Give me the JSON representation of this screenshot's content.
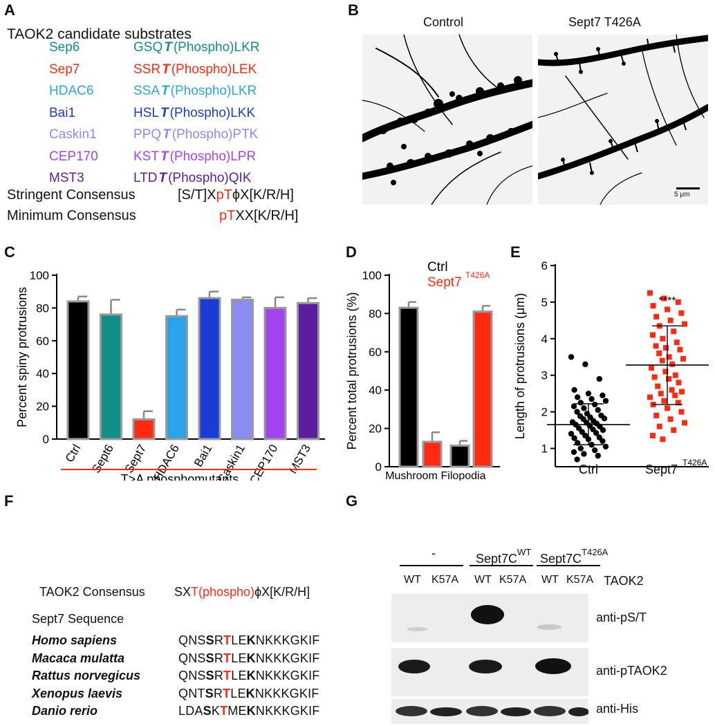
{
  "panels": {
    "A": {
      "letter": "A",
      "title": "TAOK2 candidate substrates",
      "rows": [
        {
          "name": "Sep6",
          "prefix": "GSQ",
          "site": "T",
          "suffix": "(Phospho)LKR",
          "color": "#0f8f86"
        },
        {
          "name": "Sep7",
          "prefix": "SSR",
          "site": "T",
          "suffix": "(Phospho)LEK",
          "color": "#ff2a10"
        },
        {
          "name": "HDAC6",
          "prefix": "SSA",
          "site": "T",
          "suffix": "(Phospho)LKR",
          "color": "#2aa3ea"
        },
        {
          "name": "Bai1",
          "prefix": "HSL",
          "site": "T",
          "suffix": "(Phospho)LKK",
          "color": "#1a3bd4"
        },
        {
          "name": "Caskin1",
          "prefix": "PPQ",
          "site": "T",
          "suffix": "(Phospho)PTK",
          "color": "#8a8cf0"
        },
        {
          "name": "CEP170",
          "prefix": "KST",
          "site": "T",
          "suffix": "(Phospho)LPR",
          "color": "#a245ee"
        },
        {
          "name": "MST3",
          "prefix": "LTD",
          "site": "T",
          "suffix": "(Phospho)QIK",
          "color": "#5a1e9e"
        }
      ],
      "stringent_label": "Stringent Consensus",
      "stringent_pre": "[S/T]X",
      "stringent_red": "pT",
      "stringent_post": "ϕX[K/R/H]",
      "minimum_label": "Minimum Consensus",
      "minimum_red": "pT",
      "minimum_post": "XX[K/R/H]"
    },
    "B": {
      "letter": "B",
      "left_title": "Control",
      "right_title": "Sept7 T426A",
      "scale_label": "5 μm"
    },
    "C": {
      "letter": "C"
    },
    "D": {
      "letter": "D"
    },
    "E": {
      "letter": "E"
    },
    "F": {
      "letter": "F",
      "consensus_label": "TAOK2 Consensus",
      "consensus_pre": "SX",
      "consensus_red": "T(phospho)",
      "consensus_post": "ϕX[K/R/H]",
      "seq_title": "Sept7 Sequence",
      "species": [
        {
          "name": "Homo sapiens",
          "a": "QNS",
          "b": "S",
          "c": "R",
          "d": "T",
          "e": "LE",
          "f": "K",
          "g": "NKKKGKIF"
        },
        {
          "name": "Macaca mulatta",
          "a": "QNS",
          "b": "S",
          "c": "R",
          "d": "T",
          "e": "LE",
          "f": "K",
          "g": "NKKKGKIF"
        },
        {
          "name": "Rattus norvegicus",
          "a": "QNS",
          "b": "S",
          "c": "R",
          "d": "T",
          "e": "LE",
          "f": "K",
          "g": "NKKKGKIF"
        },
        {
          "name": "Xenopus laevis",
          "a": "QNT",
          "b": "S",
          "c": "R",
          "d": "T",
          "e": "LE",
          "f": "K",
          "g": "NKKKGKIF"
        },
        {
          "name": "Danio rerio",
          "a": "LDA",
          "b": "S",
          "c": "K",
          "d": "T",
          "e": "ME",
          "f": "K",
          "g": "NKKKGKIF"
        }
      ]
    },
    "G": {
      "letter": "G",
      "group1": "-",
      "group2": "Sept7C",
      "group2_sup": "WT",
      "group3": "Sept7C",
      "group3_sup": "T426A",
      "lanes": [
        "WT",
        "K57A",
        "WT",
        "K57A",
        "WT",
        "K57A"
      ],
      "taok2_label": "TAOK2",
      "blot_labels": [
        "anti-pS/T",
        "anti-pTAOK2",
        "anti-His"
      ]
    }
  },
  "chart_data": [
    {
      "type": "bar",
      "panel": "C",
      "ylabel": "Percent spiny protrusions",
      "ylim": [
        0,
        100
      ],
      "yticks": [
        0,
        20,
        40,
        60,
        80,
        100
      ],
      "categories": [
        "Ctrl",
        "Sept6",
        "Sept7",
        "HDAC6",
        "Bai1",
        "Caskin1",
        "CEP170",
        "MST3"
      ],
      "values": [
        84,
        76,
        12,
        75,
        86,
        85,
        80,
        83
      ],
      "errors": [
        3,
        9,
        5,
        4,
        4,
        1.5,
        6.5,
        3
      ],
      "colors": [
        "#000000",
        "#0f8f86",
        "#ff2a10",
        "#2aa3ea",
        "#1a3bd4",
        "#8a8cf0",
        "#a245ee",
        "#5a1e9e"
      ],
      "xgroup_label": "T>A phosphomutants"
    },
    {
      "type": "bar",
      "panel": "D",
      "ylabel": "Percent total protrusions (%)",
      "ylim": [
        0,
        100
      ],
      "yticks": [
        0,
        20,
        40,
        60,
        80,
        100
      ],
      "categories": [
        "Mushroom",
        "Filopodia"
      ],
      "series": [
        {
          "name": "Ctrl",
          "values": [
            83,
            11
          ],
          "errors": [
            3,
            2.5
          ],
          "color": "#000000"
        },
        {
          "name": "Sept7",
          "name_sup": "T426A",
          "values": [
            13,
            81
          ],
          "errors": [
            5,
            3
          ],
          "color": "#ff2a10"
        }
      ]
    },
    {
      "type": "scatter",
      "panel": "E",
      "ylabel": "Length of protrusions (μm)",
      "ylim": [
        0.5,
        6
      ],
      "yticks": [
        1,
        2,
        3,
        4,
        5,
        6
      ],
      "categories": [
        "Ctrl",
        "Sept7"
      ],
      "category_sup": [
        "",
        "T426A"
      ],
      "significance": "****",
      "series": [
        {
          "name": "Ctrl",
          "mean": 1.65,
          "sd_low": 1.1,
          "sd_high": 2.22,
          "marker": "circle",
          "color": "#000000",
          "values": [
            3.5,
            3.3,
            2.9,
            2.6,
            2.5,
            2.45,
            2.4,
            2.35,
            2.3,
            2.25,
            2.2,
            2.15,
            2.1,
            2.05,
            2.0,
            1.95,
            1.9,
            1.88,
            1.85,
            1.82,
            1.8,
            1.75,
            1.72,
            1.7,
            1.68,
            1.65,
            1.62,
            1.6,
            1.55,
            1.52,
            1.5,
            1.45,
            1.42,
            1.4,
            1.35,
            1.3,
            1.28,
            1.25,
            1.2,
            1.15,
            1.1,
            1.05,
            1.0,
            0.95,
            0.9,
            0.85,
            0.8,
            0.7
          ]
        },
        {
          "name": "Sept7 T426A",
          "mean": 3.28,
          "sd_low": 2.2,
          "sd_high": 4.35,
          "marker": "square",
          "color": "#ff2a10",
          "values": [
            5.25,
            5.1,
            5.0,
            4.9,
            4.8,
            4.7,
            4.6,
            4.5,
            4.4,
            4.35,
            4.2,
            4.1,
            4.0,
            3.9,
            3.8,
            3.75,
            3.7,
            3.6,
            3.5,
            3.45,
            3.4,
            3.3,
            3.2,
            3.1,
            3.0,
            2.95,
            2.9,
            2.8,
            2.7,
            2.6,
            2.55,
            2.5,
            2.45,
            2.4,
            2.3,
            2.25,
            2.2,
            2.1,
            2.0,
            1.9,
            1.8,
            1.7,
            1.6,
            1.5,
            1.35,
            1.25
          ]
        }
      ]
    }
  ]
}
